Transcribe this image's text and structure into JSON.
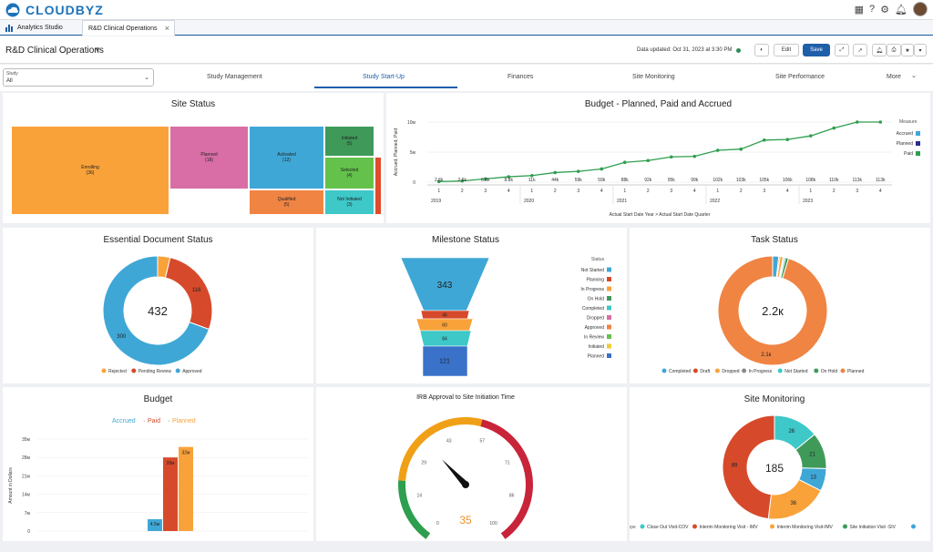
{
  "brand": {
    "name": "CLOUDBYZ"
  },
  "app_tabs": [
    {
      "label": "Analytics Studio"
    },
    {
      "label": "R&D Clinical Operations"
    }
  ],
  "header": {
    "title": "R&D Clinical Operations",
    "updated": "Data updated: Oct 31, 2023 at 3:30 PM",
    "edit": "Edit",
    "save": "Save"
  },
  "filter": {
    "label": "Study",
    "value": "All"
  },
  "nav_tabs": [
    {
      "label": "Study Management"
    },
    {
      "label": "Study Start-Up"
    },
    {
      "label": "Finances"
    },
    {
      "label": "Site Monitoring"
    },
    {
      "label": "Site Performance"
    },
    {
      "label": "More"
    }
  ],
  "site_status": {
    "title": "Site Status",
    "cells": [
      {
        "label": "Enrolling",
        "value": "(36)",
        "color": "#f9a23a"
      },
      {
        "label": "Planned",
        "value": "(18)",
        "color": "#d86ea5"
      },
      {
        "label": "Activated",
        "value": "(12)",
        "color": "#3fa7d6"
      },
      {
        "label": "Qualified",
        "value": "(5)",
        "color": "#f08443"
      },
      {
        "label": "Initiated",
        "value": "(5)",
        "color": "#3f9a5a"
      },
      {
        "label": "Selected",
        "value": "(4)",
        "color": "#64c24c"
      },
      {
        "label": "Not Initiated",
        "value": "(3)",
        "color": "#3ec8c8"
      },
      {
        "label": "",
        "value": "",
        "color": "#e04b2b"
      }
    ]
  },
  "budget_line": {
    "title": "Budget - Planned, Paid and Accrued",
    "ylabel": "Accrued, Planned, Paid",
    "xlabel": "Actual Start Date Year > Actual Start Date Quarter",
    "yticks": [
      "10м",
      "5м",
      "0"
    ],
    "legend": {
      "title": "Measure",
      "items": [
        {
          "name": "Accrued",
          "color": "#3fa7d6"
        },
        {
          "name": "Planned",
          "color": "#2b2b8f"
        },
        {
          "name": "Paid",
          "color": "#2e9e4f"
        }
      ]
    },
    "labels": [
      "2.6k",
      "2.6k",
      "6.8k",
      "8.8k",
      "11k",
      "44k",
      "59k",
      "59k",
      "88k",
      "92k",
      "95k",
      "99k",
      "102k",
      "103k",
      "105k",
      "106k",
      "108k",
      "110k",
      "113k",
      "113k"
    ],
    "quarters": [
      "1",
      "2",
      "3",
      "4",
      "1",
      "2",
      "3",
      "4",
      "1",
      "2",
      "3",
      "4",
      "1",
      "2",
      "3",
      "4",
      "1",
      "2",
      "3",
      "4"
    ],
    "years": [
      "2019",
      "2020",
      "2021",
      "2022",
      "2023"
    ],
    "values": [
      0.1,
      0.2,
      0.55,
      0.9,
      1.1,
      1.6,
      1.8,
      2.2,
      3.3,
      3.6,
      4.2,
      4.3,
      5.3,
      5.5,
      7.0,
      7.1,
      7.7,
      9.0,
      10.0,
      10.0
    ]
  },
  "essential_doc": {
    "title": "Essential Document Status",
    "total": "432",
    "segments": [
      {
        "name": "Rejected",
        "value": 16,
        "color": "#f9a23a"
      },
      {
        "name": "Pending Review",
        "value": 116,
        "color": "#d64a2b",
        "label": "116"
      },
      {
        "name": "Approved",
        "value": 300,
        "color": "#3fa7d6",
        "label": "300"
      }
    ]
  },
  "milestone": {
    "title": "Milestone Status",
    "legend_title": "Status",
    "legend": [
      {
        "name": "Not Started",
        "color": "#3fa7d6"
      },
      {
        "name": "Planning",
        "color": "#d64a2b"
      },
      {
        "name": "In Progress",
        "color": "#f9a23a"
      },
      {
        "name": "On Hold",
        "color": "#3f9a5a"
      },
      {
        "name": "Completed",
        "color": "#3ec8c8"
      },
      {
        "name": "Dropped",
        "color": "#d86ea5"
      },
      {
        "name": "Approved",
        "color": "#f08443"
      },
      {
        "name": "In Review",
        "color": "#64c24c"
      },
      {
        "name": "Initiated",
        "color": "#f2cb3a"
      },
      {
        "name": "Planned",
        "color": "#3a72c9"
      }
    ],
    "levels": [
      {
        "label": "343",
        "value": 343,
        "color": "#3fa7d6"
      },
      {
        "label": "46",
        "value": 46,
        "color": "#d64a2b"
      },
      {
        "label": "60",
        "value": 60,
        "color": "#f9a23a"
      },
      {
        "label": "84",
        "value": 84,
        "color": "#3ec8c8"
      },
      {
        "label": "121",
        "value": 121,
        "color": "#3a72c9"
      }
    ]
  },
  "task_status": {
    "title": "Task Status",
    "total": "2.2к",
    "segments": [
      {
        "name": "Completed",
        "value": 40,
        "color": "#3fa7d6"
      },
      {
        "name": "Draft",
        "value": 8,
        "color": "#d64a2b"
      },
      {
        "name": "Dropped",
        "value": 20,
        "color": "#f9a23a"
      },
      {
        "name": "In Progress",
        "value": 6,
        "color": "#8a8a8a"
      },
      {
        "name": "Not Started",
        "value": 10,
        "color": "#3ec8c8"
      },
      {
        "name": "On Hold",
        "value": 20,
        "color": "#3f9a5a"
      },
      {
        "name": "Planned",
        "value": 2100,
        "color": "#f08443",
        "label": "2.1к"
      }
    ],
    "legend": [
      {
        "name": "Completed",
        "color": "#3fa7d6"
      },
      {
        "name": "Draft",
        "color": "#d64a2b"
      },
      {
        "name": "Dropped",
        "color": "#f9a23a"
      },
      {
        "name": "In Progress",
        "color": "#8a8a8a"
      },
      {
        "name": "Not Started",
        "color": "#3ec8c8"
      },
      {
        "name": "On Hold",
        "color": "#3f9a5a"
      },
      {
        "name": "Planned",
        "color": "#f08443"
      }
    ]
  },
  "budget_bar": {
    "title": "Budget",
    "ylabel": "Amount in Dollars",
    "legend": [
      {
        "name": "Accrued",
        "color": "#3fa7d6"
      },
      {
        "name": "Paid",
        "color": "#d64a2b"
      },
      {
        "name": "Planned",
        "color": "#f9a23a"
      }
    ],
    "yticks": [
      "35м",
      "28м",
      "21м",
      "14м",
      "7м",
      "0"
    ],
    "ymax": 35,
    "bars": [
      {
        "value": 4.5,
        "label": "4.5м",
        "color": "#3fa7d6"
      },
      {
        "value": 28,
        "label": "28м",
        "color": "#d64a2b"
      },
      {
        "value": 32,
        "label": "32м",
        "color": "#f9a23a"
      }
    ]
  },
  "gauge": {
    "title": "IRB Approval to Site Initiation Time",
    "value": "35",
    "num": 35,
    "max": 100,
    "ticks": [
      "0",
      "14",
      "29",
      "43",
      "57",
      "71",
      "86",
      "100"
    ]
  },
  "site_monitoring": {
    "title": "Site Monitoring",
    "total": "185",
    "legend_title": "Type",
    "segments": [
      {
        "name": "Close Out Visit-COV",
        "value": 26,
        "color": "#3ec8c8",
        "label": "26"
      },
      {
        "name": "Site Initiation Visit -SIV",
        "value": 21,
        "color": "#3f9a5a",
        "label": "21"
      },
      {
        "name": "",
        "value": 13,
        "color": "#3fa7d6",
        "label": "13"
      },
      {
        "name": "Interim Monitoring Visit-IMV",
        "value": 36,
        "color": "#f9a23a",
        "label": "36"
      },
      {
        "name": "Interim Monitoring Visit - IMV",
        "value": 89,
        "color": "#d64a2b",
        "label": "89"
      }
    ],
    "legend": [
      {
        "name": "Close Out Visit-COV",
        "color": "#3ec8c8"
      },
      {
        "name": "Interim Monitoring Visit - IMV",
        "color": "#d64a2b"
      },
      {
        "name": "Interim Monitoring Visit-IMV",
        "color": "#f9a23a"
      },
      {
        "name": "Site Initiation Visit -SIV",
        "color": "#3f9a5a"
      },
      {
        "name": "",
        "color": "#3fa7d6"
      }
    ]
  }
}
